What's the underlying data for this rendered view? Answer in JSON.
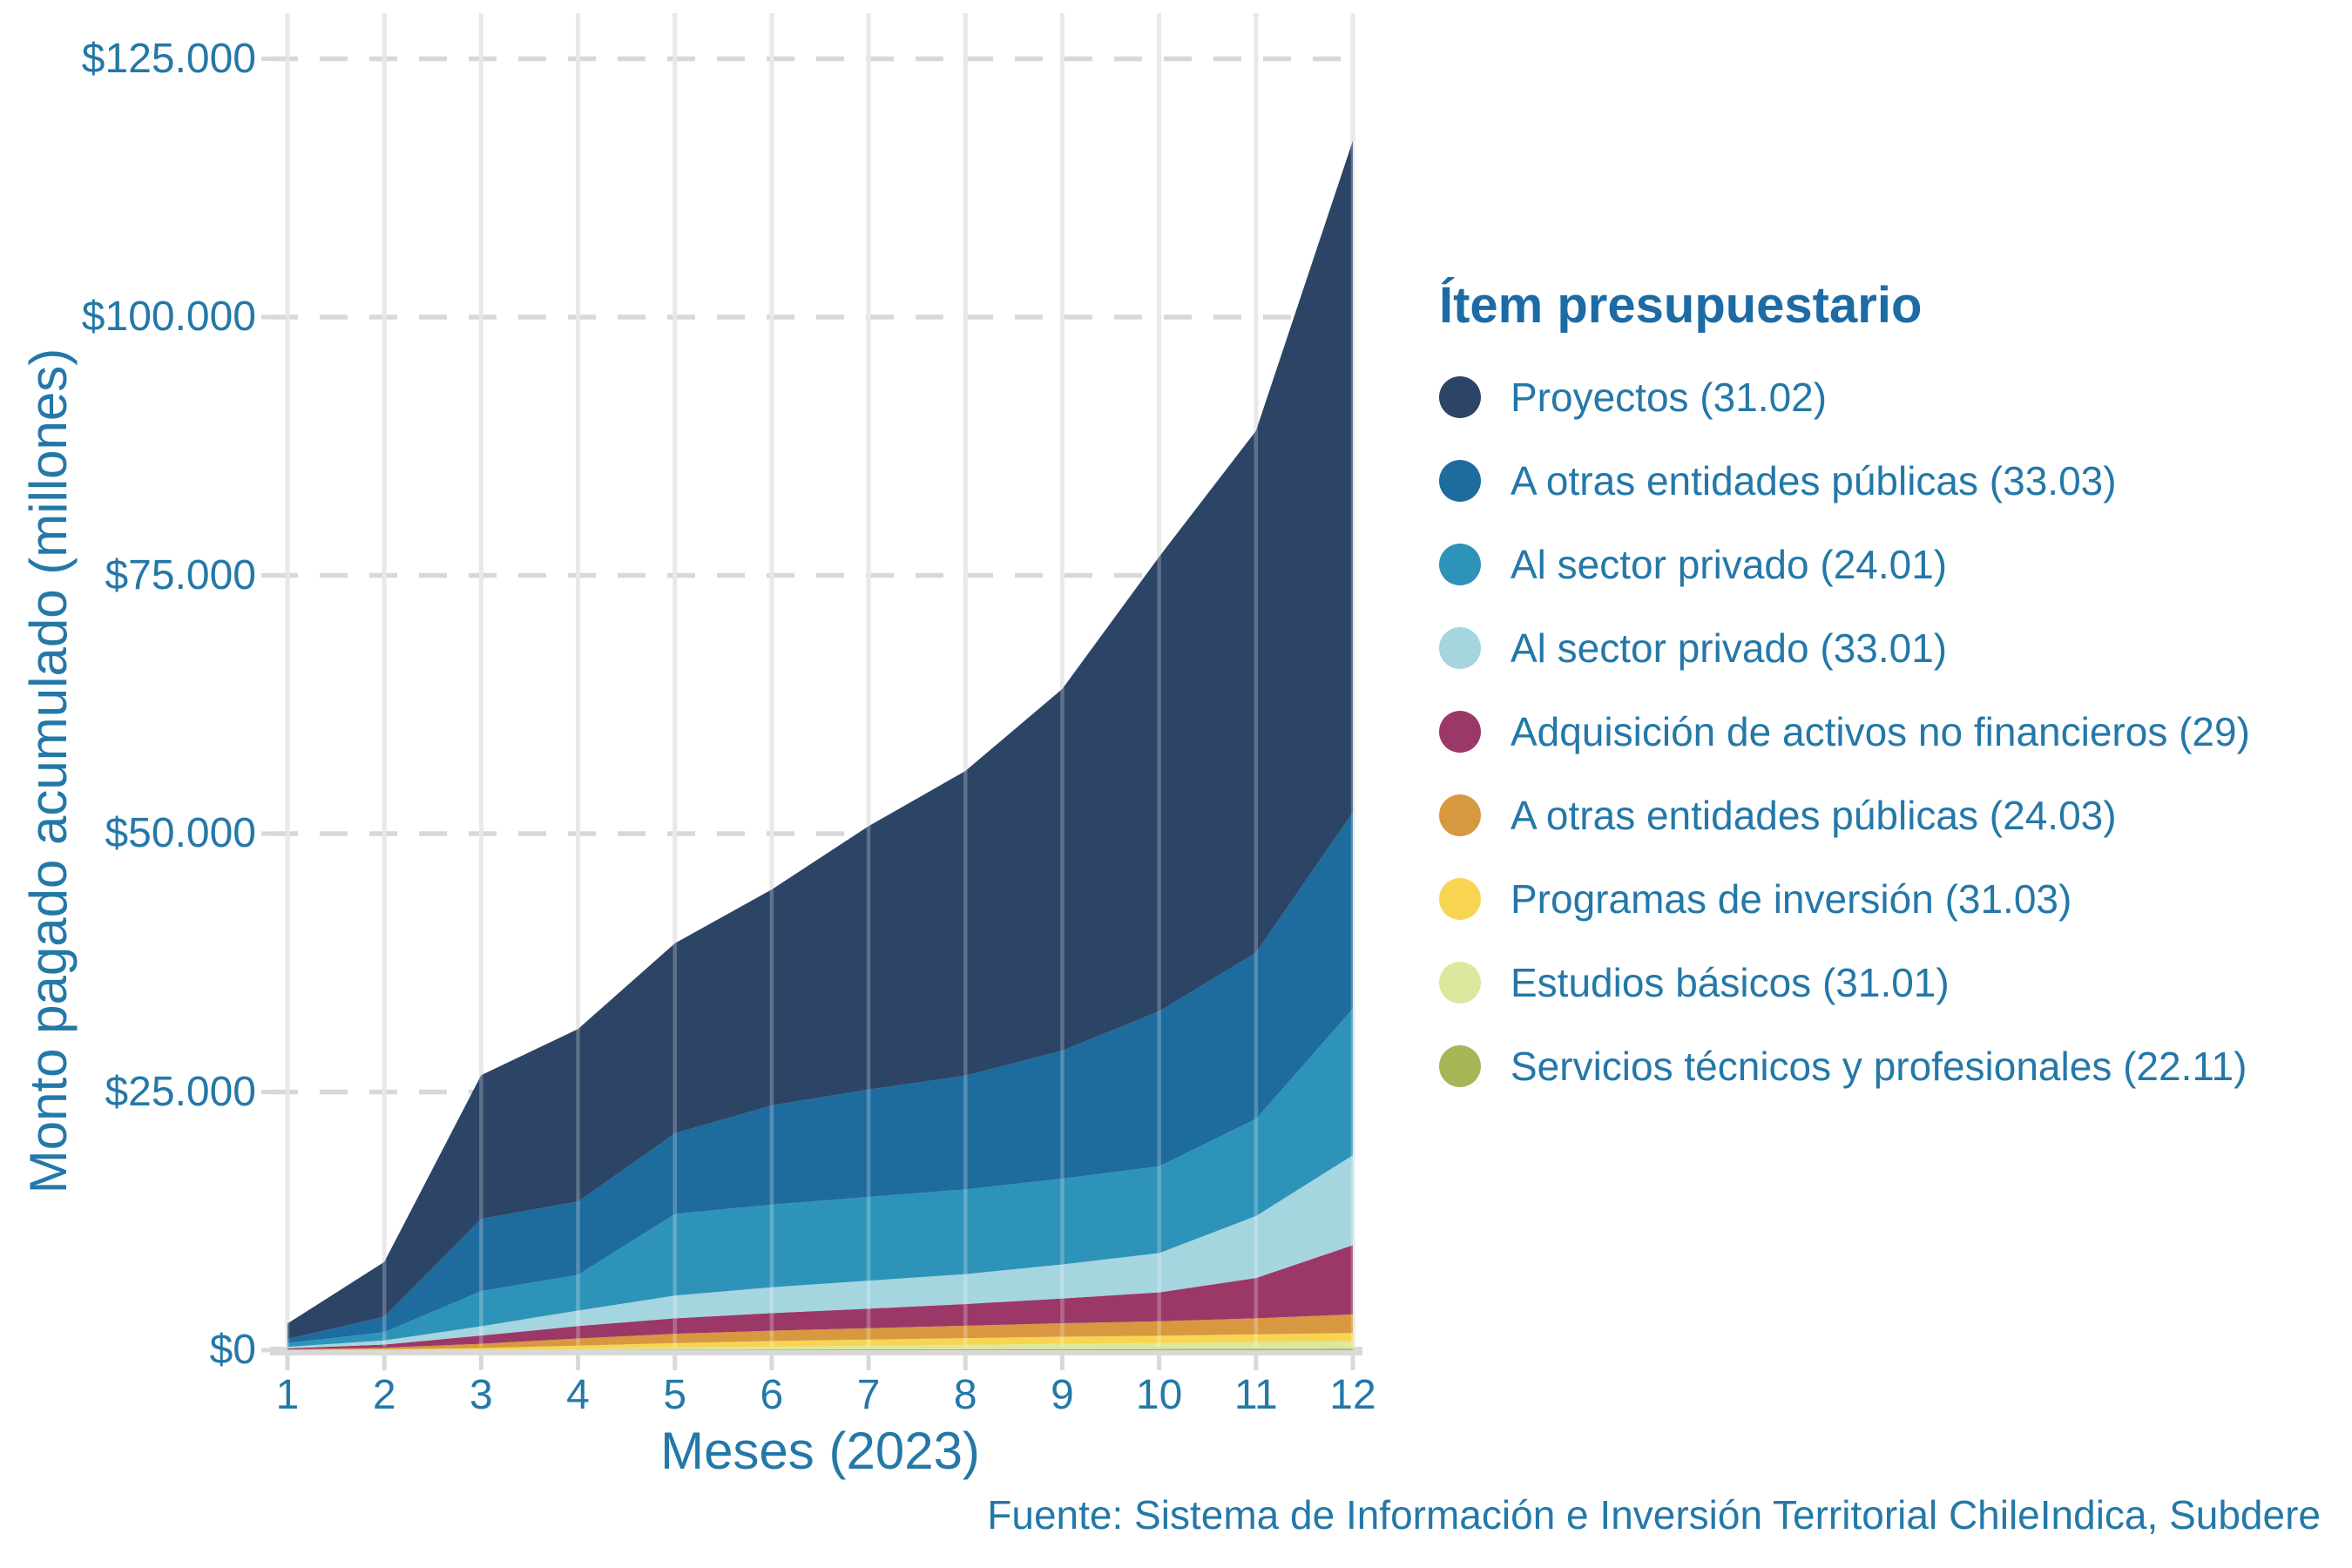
{
  "chart_data": {
    "type": "area",
    "stacked": true,
    "xlabel": "Meses (2023)",
    "ylabel": "Monto pagado acumulado (millones)",
    "x": [
      1,
      2,
      3,
      4,
      5,
      6,
      7,
      8,
      9,
      10,
      11,
      12
    ],
    "x_tick_labels": [
      "1",
      "2",
      "3",
      "4",
      "5",
      "6",
      "7",
      "8",
      "9",
      "10",
      "11",
      "12"
    ],
    "y_ticks": [
      {
        "label": "$0",
        "value": 0
      },
      {
        "label": "$25.000",
        "value": 25000
      },
      {
        "label": "$50.000",
        "value": 50000
      },
      {
        "label": "$75.000",
        "value": 75000
      },
      {
        "label": "$100.000",
        "value": 100000
      },
      {
        "label": "$125.000",
        "value": 125000
      }
    ],
    "ylim": [
      0,
      125000
    ],
    "grid": {
      "vertical": "solid",
      "horizontal": "dashed"
    },
    "legend_title": "Ítem presupuestario",
    "legend_position": "right",
    "series": [
      {
        "name": "Proyectos (31.02)",
        "color": "#2C4466",
        "values": [
          1500,
          5300,
          13900,
          16700,
          18400,
          20900,
          25500,
          29500,
          35000,
          44000,
          50500,
          65000
        ]
      },
      {
        "name": "A otras entidades públicas (33.03)",
        "color": "#1E6B9E",
        "values": [
          400,
          1500,
          7000,
          7100,
          7800,
          9600,
          10400,
          11000,
          12400,
          15000,
          16100,
          19000
        ]
      },
      {
        "name": "Al sector privado (24.01)",
        "color": "#2E93B9",
        "values": [
          350,
          800,
          3400,
          3450,
          7900,
          8000,
          8100,
          8200,
          8300,
          8400,
          9400,
          14200
        ]
      },
      {
        "name": "Al sector privado (33.01)",
        "color": "#A5D5DF",
        "values": [
          150,
          400,
          900,
          1500,
          2200,
          2500,
          2700,
          2900,
          3300,
          3800,
          6000,
          8700
        ]
      },
      {
        "name": "Adquisición de activos no financieros (29)",
        "color": "#9C3868",
        "values": [
          100,
          300,
          800,
          1200,
          1500,
          1700,
          1900,
          2100,
          2400,
          2800,
          3900,
          6700
        ]
      },
      {
        "name": "A otras entidades públicas (24.03)",
        "color": "#D89840",
        "values": [
          50,
          150,
          400,
          700,
          900,
          1000,
          1100,
          1200,
          1300,
          1400,
          1550,
          1800
        ]
      },
      {
        "name": "Programas de inversión (31.03)",
        "color": "#F7D553",
        "values": [
          20,
          60,
          150,
          300,
          450,
          550,
          600,
          650,
          700,
          720,
          760,
          800
        ]
      },
      {
        "name": "Estudios básicos (31.01)",
        "color": "#DDE89E",
        "values": [
          10,
          30,
          60,
          120,
          200,
          280,
          350,
          420,
          500,
          560,
          650,
          720
        ]
      },
      {
        "name": "Servicios técnicos y profesionales (22.11)",
        "color": "#A7B557",
        "values": [
          0,
          5,
          10,
          20,
          40,
          60,
          80,
          100,
          110,
          120,
          130,
          150
        ]
      }
    ],
    "source_note": "Fuente: Sistema de Información e Inversión Territorial ChileIndica, Subdere"
  },
  "colors": {
    "text": "#2478A8",
    "legend_title_text": "#1C6BA4",
    "grid_vertical": "#E2E2E2",
    "grid_horizontal_dashed": "#D8D8D8",
    "axis_baseline": "#D9D9D9",
    "background": "#FFFFFF"
  }
}
